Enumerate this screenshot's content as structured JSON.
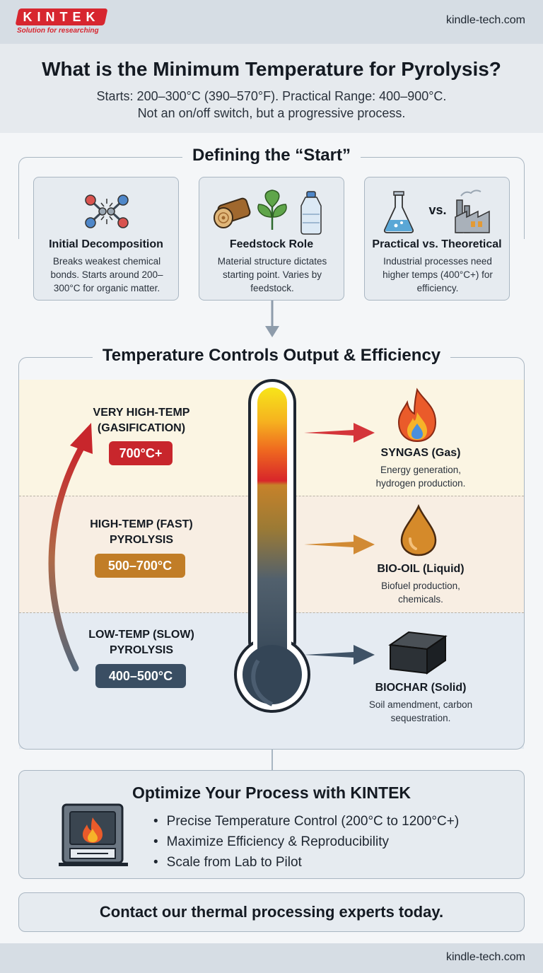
{
  "brand": {
    "logo_text": "KINTEK",
    "tagline": "Solution for researching",
    "site": "kindle-tech.com"
  },
  "header": {
    "title": "What is the Minimum Temperature for Pyrolysis?",
    "subtitle_line1": "Starts: 200–300°C (390–570°F). Practical Range: 400–900°C.",
    "subtitle_line2": "Not an on/off switch, but a progressive process."
  },
  "defining": {
    "title": "Defining the “Start”",
    "cards": [
      {
        "icon": "molecule-bonds-icon",
        "title": "Initial Decomposition",
        "desc": "Breaks weakest chemical bonds. Starts around 200–300°C for organic matter."
      },
      {
        "icon": "feedstock-icon",
        "title": "Feedstock Role",
        "desc": "Material structure dictates starting point. Varies by feedstock."
      },
      {
        "icon": "flask-vs-factory-icon",
        "title": "Practical vs. Theoretical",
        "vs_label": "vs.",
        "desc": "Industrial processes need higher temps (400°C+) for efficiency."
      }
    ]
  },
  "controls": {
    "title": "Temperature Controls Output & Efficiency",
    "stages": [
      {
        "label": "VERY HIGH-TEMP (GASIFICATION)",
        "range": "700°C+",
        "color": "#c8262c",
        "band_color": "#fbf5e3",
        "product": "SYNGAS (Gas)",
        "product_desc": "Energy generation, hydrogen production.",
        "icon": "flame-icon"
      },
      {
        "label": "HIGH-TEMP (FAST) PYROLYSIS",
        "range": "500–700°C",
        "color": "#c17d27",
        "band_color": "#f8eee3",
        "product": "BIO-OIL (Liquid)",
        "product_desc": "Biofuel production, chemicals.",
        "icon": "oil-drop-icon"
      },
      {
        "label": "LOW-TEMP (SLOW) PYROLYSIS",
        "range": "400–500°C",
        "color": "#3a4e63",
        "band_color": "#e5ebf2",
        "product": "BIOCHAR (Solid)",
        "product_desc": "Soil amendment, carbon sequestration.",
        "icon": "biochar-block-icon"
      }
    ]
  },
  "optimize": {
    "title": "Optimize Your Process with KINTEK",
    "icon": "furnace-icon",
    "bullets": [
      "Precise Temperature Control (200°C to 1200°C+)",
      "Maximize Efficiency & Reproducibility",
      "Scale from Lab to Pilot"
    ]
  },
  "cta": "Contact our thermal processing experts today."
}
